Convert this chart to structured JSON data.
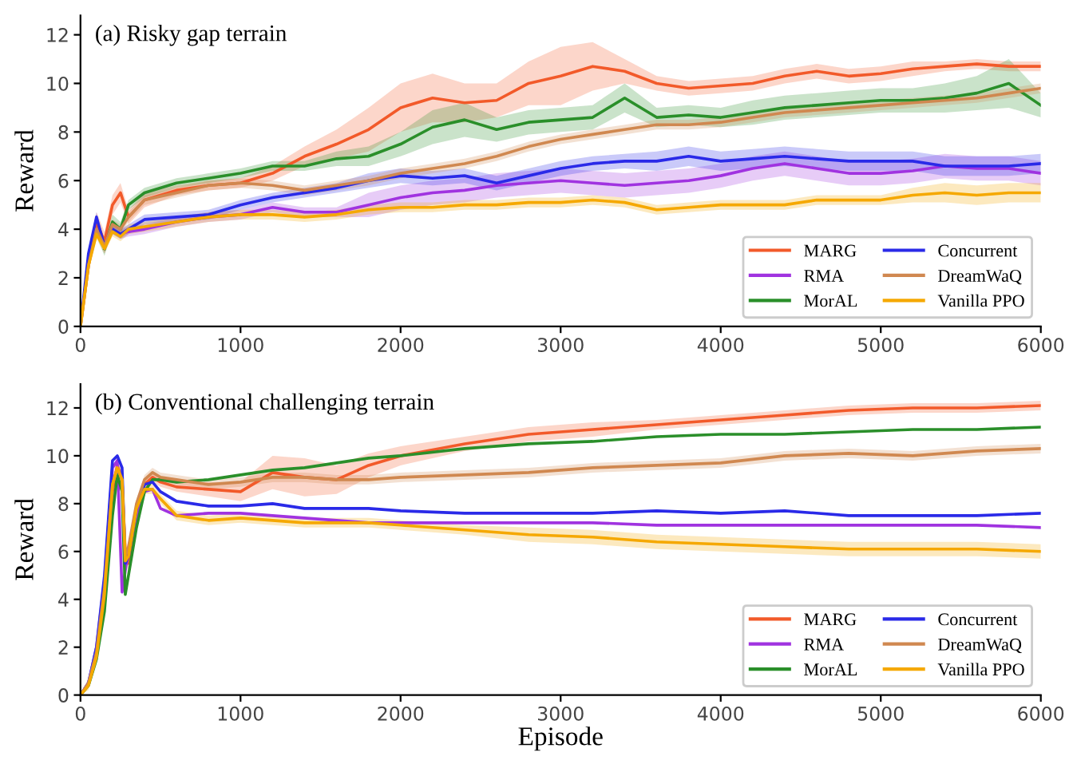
{
  "chart_data": [
    {
      "type": "line",
      "title": "(a) Risky gap terrain",
      "ylabel": "Reward",
      "xlim": [
        0,
        6000
      ],
      "ylim": [
        0,
        12.8
      ],
      "xticks": [
        0,
        1000,
        2000,
        3000,
        4000,
        5000,
        6000
      ],
      "yticks": [
        0,
        2,
        4,
        6,
        8,
        10,
        12
      ],
      "grid": false,
      "legend": "bottom right",
      "line_style": "solid",
      "x": [
        0,
        50,
        100,
        150,
        200,
        250,
        300,
        400,
        600,
        800,
        1000,
        1200,
        1400,
        1600,
        1800,
        2000,
        2200,
        2400,
        2600,
        2800,
        3000,
        3200,
        3400,
        3600,
        3800,
        4000,
        4200,
        4400,
        4600,
        4800,
        5000,
        5200,
        5400,
        5600,
        5800,
        6000
      ],
      "series": [
        {
          "name": "MARG",
          "color": "#f25a2a",
          "values": [
            0,
            2.5,
            4.3,
            3.5,
            5.0,
            5.5,
            4.5,
            5.2,
            5.6,
            5.8,
            5.9,
            6.3,
            7.0,
            7.5,
            8.1,
            9.0,
            9.4,
            9.2,
            9.3,
            10.0,
            10.3,
            10.7,
            10.5,
            10.0,
            9.8,
            9.9,
            10.0,
            10.3,
            10.5,
            10.3,
            10.4,
            10.6,
            10.7,
            10.8,
            10.7,
            10.7
          ],
          "lower": [
            0,
            2.2,
            3.9,
            3.1,
            4.6,
            5.1,
            4.2,
            4.9,
            5.4,
            5.6,
            5.7,
            6.0,
            6.6,
            6.9,
            7.2,
            8.0,
            8.4,
            8.4,
            8.6,
            9.1,
            9.1,
            9.7,
            10.0,
            9.7,
            9.5,
            9.6,
            9.7,
            10.0,
            10.2,
            10.0,
            10.1,
            10.3,
            10.5,
            10.6,
            10.5,
            10.5
          ],
          "upper": [
            0,
            2.8,
            4.7,
            3.9,
            5.4,
            5.9,
            4.8,
            5.5,
            5.8,
            6.0,
            6.1,
            6.6,
            7.4,
            8.1,
            9.0,
            10.0,
            10.4,
            10.0,
            10.0,
            10.9,
            11.5,
            11.7,
            11.0,
            10.3,
            10.1,
            10.2,
            10.3,
            10.6,
            10.8,
            10.6,
            10.7,
            10.9,
            10.9,
            11.0,
            10.9,
            10.9
          ]
        },
        {
          "name": "RMA",
          "color": "#a033e0",
          "values": [
            null,
            null,
            null,
            null,
            4.0,
            3.8,
            3.9,
            4.0,
            4.3,
            4.5,
            4.6,
            4.9,
            4.7,
            4.7,
            5.0,
            5.3,
            5.5,
            5.6,
            5.8,
            5.9,
            6.0,
            5.9,
            5.8,
            5.9,
            6.0,
            6.2,
            6.5,
            6.7,
            6.5,
            6.3,
            6.3,
            6.4,
            6.6,
            6.5,
            6.5,
            6.3
          ],
          "lower": [
            0,
            2.4,
            3.8,
            3.0,
            3.8,
            3.6,
            3.7,
            3.8,
            4.1,
            4.3,
            4.4,
            4.7,
            4.5,
            4.5,
            4.5,
            4.8,
            5.0,
            5.1,
            5.3,
            5.4,
            5.5,
            5.4,
            5.3,
            5.4,
            5.5,
            5.7,
            6.0,
            6.2,
            6.0,
            5.8,
            5.8,
            5.9,
            6.1,
            6.0,
            6.0,
            5.8
          ],
          "upper": [
            0,
            2.8,
            4.2,
            3.4,
            4.2,
            4.0,
            4.1,
            4.2,
            4.5,
            4.7,
            4.8,
            5.1,
            4.9,
            4.9,
            5.5,
            5.8,
            6.0,
            6.1,
            6.3,
            6.4,
            6.5,
            6.4,
            6.3,
            6.4,
            6.5,
            6.7,
            7.0,
            7.2,
            7.0,
            6.8,
            6.8,
            6.9,
            7.1,
            7.0,
            7.0,
            6.8
          ]
        },
        {
          "name": "MorAL",
          "color": "#2a8f2a",
          "values": [
            null,
            null,
            null,
            3.2,
            4.3,
            4.0,
            5.0,
            5.5,
            5.9,
            6.1,
            6.3,
            6.6,
            6.6,
            6.9,
            7.0,
            7.5,
            8.2,
            8.5,
            8.1,
            8.4,
            8.5,
            8.6,
            9.4,
            8.6,
            8.7,
            8.6,
            8.8,
            9.0,
            9.1,
            9.2,
            9.3,
            9.3,
            9.4,
            9.6,
            10.0,
            9.1
          ],
          "lower": [
            0,
            2.5,
            3.7,
            2.9,
            4.0,
            3.7,
            4.8,
            5.3,
            5.7,
            5.9,
            6.1,
            6.4,
            6.4,
            6.6,
            6.6,
            7.0,
            7.5,
            7.8,
            7.6,
            7.9,
            8.0,
            8.1,
            8.8,
            8.2,
            8.3,
            8.2,
            8.3,
            8.5,
            8.6,
            8.7,
            8.8,
            8.8,
            8.8,
            8.9,
            9.0,
            8.6
          ],
          "upper": [
            0,
            3.1,
            4.3,
            3.5,
            4.6,
            4.3,
            5.2,
            5.7,
            6.1,
            6.3,
            6.5,
            6.8,
            6.8,
            7.2,
            7.4,
            8.0,
            8.9,
            9.2,
            8.6,
            8.9,
            9.0,
            9.1,
            10.0,
            9.0,
            9.1,
            9.0,
            9.3,
            9.5,
            9.6,
            9.7,
            9.8,
            9.8,
            10.0,
            10.3,
            11.0,
            9.6
          ]
        },
        {
          "name": "Concurrent",
          "color": "#2a2ae8",
          "values": [
            0,
            3.0,
            4.5,
            3.3,
            4.0,
            3.8,
            4.0,
            4.4,
            4.5,
            4.6,
            5.0,
            5.3,
            5.5,
            5.7,
            6.0,
            6.2,
            6.1,
            6.2,
            5.9,
            6.2,
            6.5,
            6.7,
            6.8,
            6.8,
            7.0,
            6.8,
            6.9,
            7.0,
            6.9,
            6.8,
            6.8,
            6.8,
            6.6,
            6.6,
            6.6,
            6.7
          ],
          "lower": [
            0,
            2.8,
            4.3,
            3.1,
            3.8,
            3.6,
            3.8,
            4.2,
            4.3,
            4.4,
            4.8,
            5.1,
            5.3,
            5.5,
            5.7,
            5.9,
            5.8,
            5.9,
            5.6,
            5.9,
            6.2,
            6.4,
            6.5,
            6.4,
            6.6,
            6.4,
            6.5,
            6.6,
            6.5,
            6.4,
            6.4,
            6.4,
            6.2,
            6.2,
            6.2,
            6.3
          ],
          "upper": [
            0,
            3.2,
            4.7,
            3.5,
            4.2,
            4.0,
            4.2,
            4.6,
            4.7,
            4.8,
            5.2,
            5.5,
            5.7,
            5.9,
            6.3,
            6.5,
            6.4,
            6.5,
            6.2,
            6.5,
            6.8,
            7.0,
            7.1,
            7.2,
            7.4,
            7.2,
            7.3,
            7.4,
            7.3,
            7.2,
            7.2,
            7.2,
            7.0,
            7.0,
            7.0,
            7.1
          ]
        },
        {
          "name": "DreamWaQ",
          "color": "#d08850",
          "values": [
            0,
            2.5,
            4.0,
            3.3,
            4.2,
            4.0,
            4.5,
            5.2,
            5.5,
            5.8,
            5.9,
            5.8,
            5.6,
            5.8,
            6.0,
            6.3,
            6.5,
            6.7,
            7.0,
            7.4,
            7.7,
            7.9,
            8.1,
            8.3,
            8.3,
            8.4,
            8.6,
            8.8,
            8.9,
            9.0,
            9.1,
            9.2,
            9.3,
            9.4,
            9.6,
            9.8
          ],
          "lower": [
            0,
            2.3,
            3.8,
            3.1,
            4.0,
            3.8,
            4.3,
            5.0,
            5.3,
            5.6,
            5.7,
            5.6,
            5.4,
            5.6,
            5.8,
            6.1,
            6.3,
            6.5,
            6.8,
            7.2,
            7.5,
            7.7,
            7.9,
            8.1,
            8.1,
            8.2,
            8.4,
            8.6,
            8.7,
            8.8,
            8.9,
            9.0,
            9.1,
            9.2,
            9.4,
            9.6
          ],
          "upper": [
            0,
            2.7,
            4.2,
            3.5,
            4.4,
            4.2,
            4.7,
            5.4,
            5.7,
            6.0,
            6.1,
            6.0,
            5.8,
            6.0,
            6.2,
            6.5,
            6.7,
            6.9,
            7.2,
            7.6,
            7.9,
            8.1,
            8.3,
            8.5,
            8.5,
            8.6,
            8.8,
            9.0,
            9.1,
            9.2,
            9.3,
            9.4,
            9.5,
            9.6,
            9.8,
            10.0
          ]
        },
        {
          "name": "Vanilla PPO",
          "color": "#f5a800",
          "values": [
            0,
            2.5,
            3.8,
            3.2,
            3.9,
            3.7,
            4.0,
            4.1,
            4.3,
            4.5,
            4.6,
            4.6,
            4.5,
            4.6,
            4.8,
            4.9,
            4.9,
            5.0,
            5.0,
            5.1,
            5.1,
            5.2,
            5.1,
            4.8,
            4.9,
            5.0,
            5.0,
            5.0,
            5.2,
            5.2,
            5.2,
            5.4,
            5.5,
            5.4,
            5.5,
            5.5
          ],
          "lower": [
            0,
            2.3,
            3.6,
            3.0,
            3.7,
            3.5,
            3.8,
            3.9,
            4.1,
            4.3,
            4.4,
            4.4,
            4.3,
            4.4,
            4.6,
            4.7,
            4.7,
            4.8,
            4.8,
            4.9,
            4.9,
            5.0,
            4.9,
            4.6,
            4.7,
            4.8,
            4.8,
            4.8,
            5.0,
            5.0,
            5.0,
            5.1,
            5.1,
            5.0,
            5.1,
            5.1
          ],
          "upper": [
            0,
            2.7,
            4.0,
            3.4,
            4.1,
            3.9,
            4.2,
            4.3,
            4.5,
            4.7,
            4.8,
            4.8,
            4.7,
            4.8,
            5.0,
            5.1,
            5.1,
            5.2,
            5.2,
            5.3,
            5.3,
            5.4,
            5.3,
            5.0,
            5.1,
            5.2,
            5.2,
            5.2,
            5.4,
            5.4,
            5.4,
            5.7,
            5.9,
            5.8,
            5.9,
            5.9
          ]
        }
      ]
    },
    {
      "type": "line",
      "title": "(b) Conventional challenging terrain",
      "xlabel": "Episode",
      "ylabel": "Reward",
      "xlim": [
        0,
        6000
      ],
      "ylim": [
        0,
        13
      ],
      "xticks": [
        0,
        1000,
        2000,
        3000,
        4000,
        5000,
        6000
      ],
      "yticks": [
        0,
        2,
        4,
        6,
        8,
        10,
        12
      ],
      "grid": false,
      "legend": "bottom right",
      "line_style": "solid",
      "x": [
        0,
        50,
        100,
        150,
        200,
        230,
        260,
        280,
        300,
        350,
        400,
        450,
        500,
        600,
        800,
        1000,
        1200,
        1400,
        1600,
        1800,
        2000,
        2400,
        2800,
        3200,
        3600,
        4000,
        4400,
        4800,
        5200,
        5600,
        6000
      ],
      "series": [
        {
          "name": "MARG",
          "color": "#f25a2a",
          "values": [
            null,
            null,
            null,
            4,
            8.5,
            9.6,
            9.0,
            6,
            5.5,
            7.5,
            8.8,
            9.1,
            8.9,
            8.7,
            8.6,
            8.5,
            9.3,
            9.1,
            9.0,
            9.6,
            10.0,
            10.5,
            10.9,
            11.1,
            11.3,
            11.5,
            11.7,
            11.9,
            12.0,
            12.0,
            12.1
          ],
          "lower": [
            0,
            0.3,
            1.5,
            3.6,
            8.0,
            9.1,
            8.6,
            5.6,
            5.2,
            7.2,
            8.6,
            8.9,
            8.7,
            8.5,
            8.3,
            8.1,
            8.6,
            8.3,
            8.4,
            9.1,
            9.6,
            10.2,
            10.6,
            10.8,
            11.1,
            11.3,
            11.5,
            11.7,
            11.8,
            11.8,
            11.9
          ],
          "upper": [
            0,
            0.7,
            2.1,
            4.4,
            9.0,
            10.1,
            9.4,
            6.4,
            5.8,
            7.8,
            9.0,
            9.3,
            9.1,
            8.9,
            8.9,
            8.9,
            10.0,
            9.9,
            9.6,
            10.1,
            10.4,
            10.8,
            11.2,
            11.4,
            11.5,
            11.7,
            11.9,
            12.1,
            12.2,
            12.2,
            12.3
          ]
        },
        {
          "name": "RMA",
          "color": "#a033e0",
          "values": [
            0,
            0.5,
            2,
            4.8,
            9.5,
            9.8,
            4.3,
            5.2,
            6.0,
            7.5,
            8.5,
            8.6,
            7.8,
            7.5,
            7.6,
            7.6,
            7.5,
            7.4,
            7.3,
            7.2,
            7.2,
            7.2,
            7.2,
            7.2,
            7.1,
            7.1,
            7.1,
            7.1,
            7.1,
            7.1,
            7.0
          ]
        },
        {
          "name": "MorAL",
          "color": "#2a8f2a",
          "values": [
            0,
            0.4,
            1.5,
            3.5,
            7.5,
            9.2,
            8.5,
            4.2,
            5.0,
            7.0,
            8.5,
            9.0,
            9.0,
            8.9,
            9.0,
            9.2,
            9.4,
            9.5,
            9.7,
            9.9,
            10.0,
            10.3,
            10.5,
            10.6,
            10.8,
            10.9,
            10.9,
            11.0,
            11.1,
            11.1,
            11.2
          ]
        },
        {
          "name": "Concurrent",
          "color": "#2a2ae8",
          "values": [
            0,
            0.5,
            2,
            5,
            9.8,
            10,
            9.5,
            5.5,
            5.8,
            7.8,
            8.8,
            8.9,
            8.5,
            8.1,
            7.9,
            7.9,
            8.0,
            7.8,
            7.8,
            7.8,
            7.7,
            7.6,
            7.6,
            7.6,
            7.7,
            7.6,
            7.7,
            7.5,
            7.5,
            7.5,
            7.6
          ]
        },
        {
          "name": "DreamWaQ",
          "color": "#d08850",
          "values": [
            0,
            0.5,
            1.8,
            4.5,
            8.8,
            9.5,
            9.0,
            5.8,
            6.2,
            8.0,
            9.0,
            9.3,
            9.1,
            9.0,
            8.8,
            8.9,
            9.1,
            9.1,
            9.0,
            9.0,
            9.1,
            9.2,
            9.3,
            9.5,
            9.6,
            9.7,
            10.0,
            10.1,
            10.0,
            10.2,
            10.3
          ],
          "lower": [
            0,
            0.3,
            1.6,
            4.3,
            8.6,
            9.3,
            8.8,
            5.6,
            6.0,
            7.8,
            8.8,
            9.1,
            8.9,
            8.8,
            8.6,
            8.7,
            8.9,
            8.9,
            8.8,
            8.8,
            8.9,
            9.0,
            9.1,
            9.3,
            9.4,
            9.5,
            9.8,
            9.9,
            9.8,
            10.0,
            10.1
          ],
          "upper": [
            0,
            0.7,
            2.0,
            4.7,
            9.0,
            9.7,
            9.2,
            6.0,
            6.4,
            8.2,
            9.2,
            9.5,
            9.3,
            9.2,
            9.0,
            9.1,
            9.3,
            9.3,
            9.2,
            9.2,
            9.3,
            9.4,
            9.5,
            9.7,
            9.8,
            9.9,
            10.2,
            10.3,
            10.2,
            10.4,
            10.5
          ]
        },
        {
          "name": "Vanilla PPO",
          "color": "#f5a800",
          "values": [
            0,
            0.4,
            1.6,
            4.2,
            8.8,
            9.5,
            9.0,
            5.6,
            5.8,
            7.8,
            8.6,
            8.6,
            8.2,
            7.5,
            7.3,
            7.4,
            7.3,
            7.2,
            7.2,
            7.2,
            7.1,
            6.9,
            6.7,
            6.6,
            6.4,
            6.3,
            6.2,
            6.1,
            6.1,
            6.1,
            6.0
          ],
          "lower": [
            0,
            0.2,
            1.4,
            4.0,
            8.6,
            9.3,
            8.8,
            5.4,
            5.6,
            7.6,
            8.4,
            8.4,
            8.0,
            7.3,
            7.1,
            7.2,
            7.1,
            7.0,
            7.0,
            7.0,
            6.9,
            6.7,
            6.4,
            6.3,
            6.1,
            6.0,
            5.9,
            5.8,
            5.8,
            5.8,
            5.7
          ],
          "upper": [
            0,
            0.6,
            1.8,
            4.4,
            9.0,
            9.7,
            9.2,
            5.8,
            6.0,
            8.0,
            8.8,
            8.8,
            8.4,
            7.7,
            7.5,
            7.6,
            7.5,
            7.4,
            7.4,
            7.4,
            7.3,
            7.1,
            7.0,
            6.9,
            6.7,
            6.6,
            6.5,
            6.4,
            6.4,
            6.4,
            6.3
          ]
        }
      ]
    }
  ]
}
